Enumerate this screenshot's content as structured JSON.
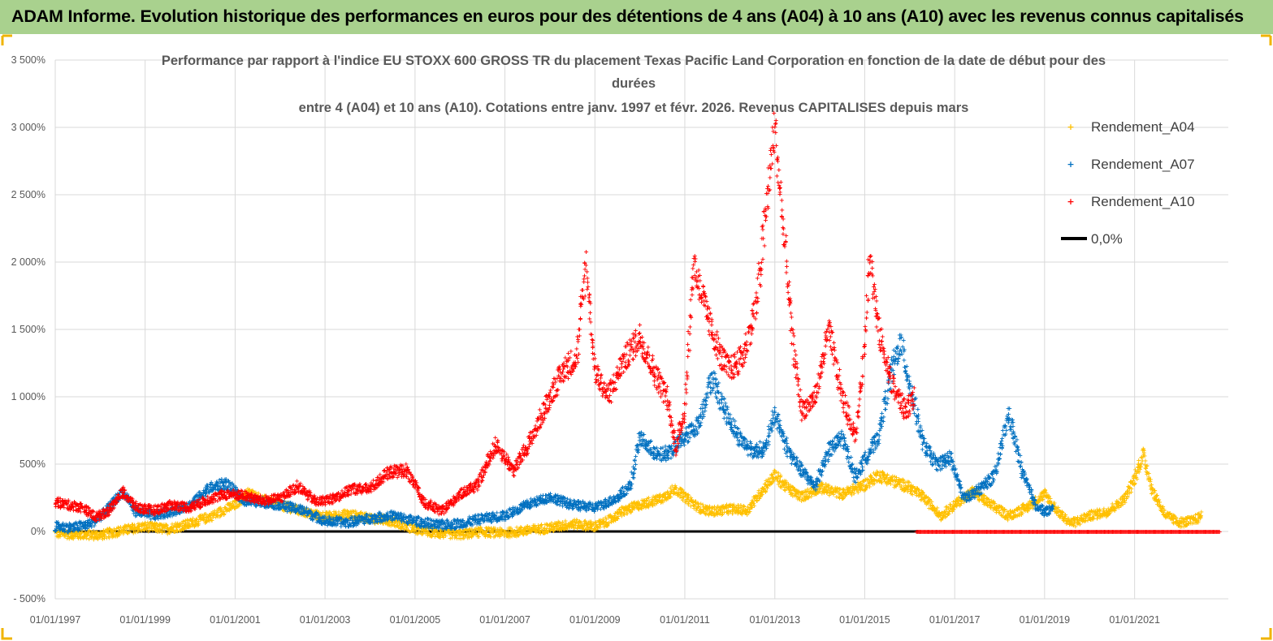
{
  "banner": {
    "title": "ADAM Informe. Evolution historique des performances en euros pour des détentions de 4 ans (A04) à 10 ans (A10) avec les revenus connus capitalisés"
  },
  "colors": {
    "banner_bg": "#a9d18e",
    "corner_marks": "#f0b400",
    "A04": "#ffc000",
    "A07": "#0070c0",
    "A10": "#ff0000",
    "zero_line": "#000000"
  },
  "chart_data": {
    "type": "scatter",
    "title_lines": [
      "Performance par rapport à l'indice EU STOXX 600 GROSS TR  du placement Texas Pacific Land Corporation en fonction de la date de début pour des",
      "durées",
      "entre 4 (A04) et 10 ans (A10). Cotations entre janv. 1997 et févr. 2026. Revenus CAPITALISES depuis mars"
    ],
    "x_axis": {
      "type": "date",
      "range": [
        "1997-01-01",
        "2023-02-01"
      ],
      "tick_labels": [
        "01/01/1997",
        "01/01/1999",
        "01/01/2001",
        "01/01/2003",
        "01/01/2005",
        "01/01/2007",
        "01/01/2009",
        "01/01/2011",
        "01/01/2013",
        "01/01/2015",
        "01/01/2017",
        "01/01/2019",
        "01/01/2021"
      ],
      "tick_years": [
        1997,
        1999,
        2001,
        2003,
        2005,
        2007,
        2009,
        2011,
        2013,
        2015,
        2017,
        2019,
        2021
      ]
    },
    "y_axis": {
      "unit": "%",
      "range": [
        -500,
        3500
      ],
      "ticks": [
        -500,
        0,
        500,
        1000,
        1500,
        2000,
        2500,
        3000,
        3500
      ],
      "tick_labels": [
        "- 500%",
        "0%",
        "500%",
        "1 000%",
        "1 500%",
        "2 000%",
        "2 500%",
        "3 000%",
        "3 500%"
      ],
      "gridlines": true
    },
    "legend": {
      "position": "top-right",
      "entries": [
        {
          "label": "Rendement_A04",
          "marker": "+",
          "color": "#ffc000"
        },
        {
          "label": "Rendement_A07",
          "marker": "+",
          "color": "#0070c0"
        },
        {
          "label": "Rendement_A10",
          "marker": "+",
          "color": "#ff0000"
        },
        {
          "label": "0,0%",
          "marker": "line",
          "color": "#000000"
        }
      ]
    },
    "series": [
      {
        "name": "Rendement_A04",
        "color": "#ffc000",
        "marker": "+",
        "points": [
          [
            1997.0,
            -10
          ],
          [
            1997.5,
            -20
          ],
          [
            1998.0,
            -25
          ],
          [
            1998.5,
            10
          ],
          [
            1999.0,
            40
          ],
          [
            1999.5,
            20
          ],
          [
            2000.0,
            60
          ],
          [
            2000.5,
            120
          ],
          [
            2001.0,
            200
          ],
          [
            2001.3,
            290
          ],
          [
            2001.6,
            240
          ],
          [
            2002.0,
            200
          ],
          [
            2002.5,
            150
          ],
          [
            2003.0,
            110
          ],
          [
            2003.5,
            130
          ],
          [
            2004.0,
            100
          ],
          [
            2004.5,
            80
          ],
          [
            2005.0,
            20
          ],
          [
            2005.5,
            -10
          ],
          [
            2006.0,
            -20
          ],
          [
            2006.5,
            0
          ],
          [
            2007.0,
            -10
          ],
          [
            2007.5,
            10
          ],
          [
            2008.0,
            30
          ],
          [
            2008.5,
            60
          ],
          [
            2009.0,
            40
          ],
          [
            2009.3,
            80
          ],
          [
            2009.6,
            150
          ],
          [
            2010.0,
            200
          ],
          [
            2010.5,
            250
          ],
          [
            2010.8,
            320
          ],
          [
            2011.0,
            260
          ],
          [
            2011.3,
            180
          ],
          [
            2011.6,
            150
          ],
          [
            2012.0,
            170
          ],
          [
            2012.4,
            160
          ],
          [
            2012.7,
            300
          ],
          [
            2013.0,
            420
          ],
          [
            2013.3,
            320
          ],
          [
            2013.6,
            260
          ],
          [
            2014.0,
            330
          ],
          [
            2014.5,
            280
          ],
          [
            2015.0,
            350
          ],
          [
            2015.3,
            420
          ],
          [
            2015.6,
            380
          ],
          [
            2016.0,
            330
          ],
          [
            2016.3,
            260
          ],
          [
            2016.7,
            120
          ],
          [
            2017.0,
            200
          ],
          [
            2017.4,
            300
          ],
          [
            2017.8,
            200
          ],
          [
            2018.2,
            120
          ],
          [
            2018.6,
            180
          ],
          [
            2019.0,
            280
          ],
          [
            2019.3,
            150
          ],
          [
            2019.6,
            60
          ],
          [
            2020.0,
            120
          ],
          [
            2020.4,
            150
          ],
          [
            2020.8,
            250
          ],
          [
            2021.0,
            400
          ],
          [
            2021.2,
            580
          ],
          [
            2021.4,
            300
          ],
          [
            2021.7,
            120
          ],
          [
            2022.0,
            70
          ],
          [
            2022.3,
            80
          ],
          [
            2022.5,
            120
          ]
        ]
      },
      {
        "name": "Rendement_A07",
        "color": "#0070c0",
        "marker": "+",
        "points": [
          [
            1997.0,
            40
          ],
          [
            1997.4,
            30
          ],
          [
            1997.8,
            60
          ],
          [
            1998.2,
            180
          ],
          [
            1998.5,
            300
          ],
          [
            1998.8,
            150
          ],
          [
            1999.2,
            120
          ],
          [
            1999.6,
            150
          ],
          [
            2000.0,
            200
          ],
          [
            2000.4,
            320
          ],
          [
            2000.8,
            360
          ],
          [
            2001.2,
            230
          ],
          [
            2001.6,
            220
          ],
          [
            2002.0,
            200
          ],
          [
            2002.5,
            160
          ],
          [
            2003.0,
            80
          ],
          [
            2003.5,
            70
          ],
          [
            2004.0,
            100
          ],
          [
            2004.5,
            120
          ],
          [
            2005.0,
            80
          ],
          [
            2005.5,
            50
          ],
          [
            2006.0,
            60
          ],
          [
            2006.5,
            100
          ],
          [
            2007.0,
            120
          ],
          [
            2007.5,
            200
          ],
          [
            2008.0,
            260
          ],
          [
            2008.5,
            200
          ],
          [
            2009.0,
            180
          ],
          [
            2009.5,
            250
          ],
          [
            2009.8,
            350
          ],
          [
            2010.0,
            700
          ],
          [
            2010.4,
            560
          ],
          [
            2010.7,
            600
          ],
          [
            2011.0,
            700
          ],
          [
            2011.3,
            800
          ],
          [
            2011.6,
            1150
          ],
          [
            2011.9,
            900
          ],
          [
            2012.2,
            700
          ],
          [
            2012.5,
            600
          ],
          [
            2012.8,
            620
          ],
          [
            2013.0,
            880
          ],
          [
            2013.3,
            600
          ],
          [
            2013.6,
            450
          ],
          [
            2013.9,
            340
          ],
          [
            2014.2,
            600
          ],
          [
            2014.5,
            700
          ],
          [
            2014.8,
            400
          ],
          [
            2015.0,
            540
          ],
          [
            2015.3,
            700
          ],
          [
            2015.6,
            1200
          ],
          [
            2015.8,
            1400
          ],
          [
            2016.0,
            1100
          ],
          [
            2016.3,
            650
          ],
          [
            2016.6,
            500
          ],
          [
            2016.9,
            550
          ],
          [
            2017.2,
            250
          ],
          [
            2017.5,
            300
          ],
          [
            2017.9,
            420
          ],
          [
            2018.2,
            880
          ],
          [
            2018.5,
            450
          ],
          [
            2018.8,
            200
          ],
          [
            2019.0,
            150
          ],
          [
            2019.2,
            170
          ]
        ]
      },
      {
        "name": "Rendement_A10",
        "color": "#ff0000",
        "marker": "+",
        "points": [
          [
            1997.0,
            220
          ],
          [
            1997.3,
            200
          ],
          [
            1997.6,
            180
          ],
          [
            1997.9,
            110
          ],
          [
            1998.2,
            160
          ],
          [
            1998.5,
            300
          ],
          [
            1998.8,
            180
          ],
          [
            1999.2,
            160
          ],
          [
            1999.6,
            200
          ],
          [
            2000.0,
            180
          ],
          [
            2000.4,
            240
          ],
          [
            2000.8,
            280
          ],
          [
            2001.2,
            270
          ],
          [
            2001.6,
            230
          ],
          [
            2002.0,
            250
          ],
          [
            2002.4,
            340
          ],
          [
            2002.8,
            220
          ],
          [
            2003.2,
            250
          ],
          [
            2003.6,
            320
          ],
          [
            2004.0,
            320
          ],
          [
            2004.4,
            440
          ],
          [
            2004.8,
            460
          ],
          [
            2005.2,
            220
          ],
          [
            2005.6,
            150
          ],
          [
            2006.0,
            280
          ],
          [
            2006.4,
            350
          ],
          [
            2006.8,
            650
          ],
          [
            2007.2,
            450
          ],
          [
            2007.6,
            700
          ],
          [
            2008.0,
            1000
          ],
          [
            2008.3,
            1200
          ],
          [
            2008.6,
            1300
          ],
          [
            2008.8,
            2000
          ],
          [
            2009.0,
            1200
          ],
          [
            2009.3,
            1000
          ],
          [
            2009.6,
            1250
          ],
          [
            2010.0,
            1450
          ],
          [
            2010.3,
            1200
          ],
          [
            2010.6,
            1000
          ],
          [
            2010.8,
            620
          ],
          [
            2011.0,
            900
          ],
          [
            2011.2,
            2000
          ],
          [
            2011.5,
            1600
          ],
          [
            2011.8,
            1300
          ],
          [
            2012.0,
            1200
          ],
          [
            2012.3,
            1300
          ],
          [
            2012.6,
            1700
          ],
          [
            2012.9,
            2700
          ],
          [
            2013.0,
            3000
          ],
          [
            2013.2,
            2200
          ],
          [
            2013.4,
            1400
          ],
          [
            2013.6,
            900
          ],
          [
            2013.9,
            1000
          ],
          [
            2014.2,
            1500
          ],
          [
            2014.5,
            1000
          ],
          [
            2014.8,
            700
          ],
          [
            2015.0,
            1400
          ],
          [
            2015.1,
            2100
          ],
          [
            2015.3,
            1500
          ],
          [
            2015.6,
            1100
          ],
          [
            2015.9,
            900
          ],
          [
            2016.1,
            1000
          ]
        ]
      },
      {
        "name": "0,0%",
        "color": "#000000",
        "marker": "line",
        "points": [
          [
            1997.0,
            0
          ],
          [
            2016.2,
            0
          ]
        ]
      }
    ]
  }
}
